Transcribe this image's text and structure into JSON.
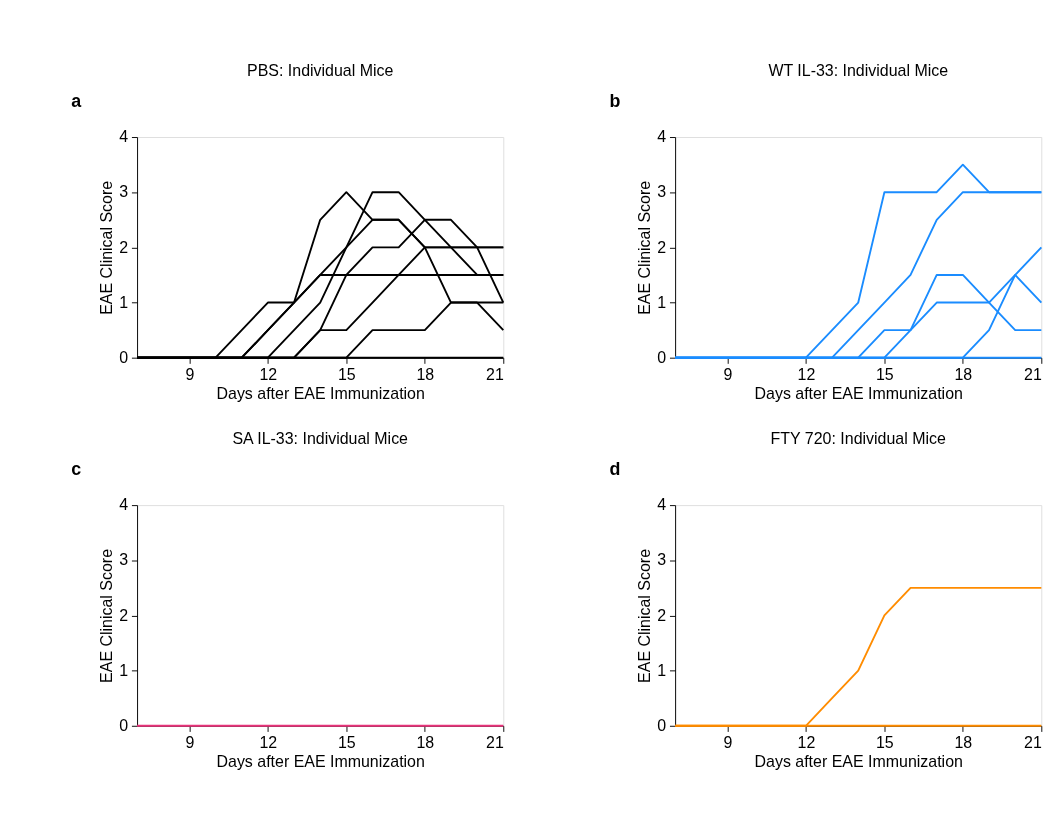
{
  "chart_data": [
    {
      "type": "line",
      "title": "PBS: Individual Mice",
      "xlabel": "Days after EAE Immunization",
      "ylabel": "EAE Clinical Score",
      "annotations": [
        "a"
      ],
      "xlim": [
        7,
        21
      ],
      "xticks": [
        9,
        12,
        15,
        18,
        21
      ],
      "ylim": [
        0,
        4
      ],
      "yticks": [
        0,
        1,
        2,
        3,
        4
      ],
      "grid": false,
      "line_style": "solid",
      "marker": "none",
      "x": [
        7,
        8,
        9,
        10,
        11,
        12,
        13,
        14,
        15,
        16,
        17,
        18,
        19,
        20,
        21
      ],
      "series": [
        {
          "color": "#000000",
          "values": [
            0,
            0,
            0,
            0,
            0.5,
            1,
            1,
            2.5,
            3,
            2.5,
            2.5,
            2,
            1,
            1,
            0.5
          ]
        },
        {
          "color": "#000000",
          "values": [
            0,
            0,
            0,
            0,
            0,
            0.5,
            1,
            1.5,
            2,
            2.5,
            2.5,
            2,
            2,
            2,
            2
          ]
        },
        {
          "color": "#000000",
          "values": [
            0,
            0,
            0,
            0,
            0,
            0,
            0.5,
            1,
            2,
            3,
            3,
            2.5,
            2,
            1.5,
            1.5
          ]
        },
        {
          "color": "#000000",
          "values": [
            0,
            0,
            0,
            0,
            0,
            0,
            0,
            0.5,
            1.5,
            2,
            2,
            2.5,
            2.5,
            2,
            1
          ]
        },
        {
          "color": "#000000",
          "values": [
            0,
            0,
            0,
            0,
            0,
            0,
            0,
            0.5,
            0.5,
            1,
            1.5,
            2,
            2,
            2,
            2
          ]
        },
        {
          "color": "#000000",
          "values": [
            0,
            0,
            0,
            0,
            0,
            0,
            0,
            0,
            0,
            0.5,
            0.5,
            0.5,
            1,
            1,
            1
          ]
        },
        {
          "color": "#000000",
          "values": [
            0,
            0,
            0,
            0,
            0,
            0.5,
            1,
            1.5,
            1.5,
            1.5,
            1.5,
            1.5,
            1.5,
            1.5,
            1.5
          ]
        },
        {
          "color": "#000000",
          "values": [
            0,
            0,
            0,
            0,
            0,
            0,
            0,
            0,
            0,
            0,
            0,
            0,
            0,
            0,
            0
          ]
        }
      ]
    },
    {
      "type": "line",
      "title": "WT IL-33: Individual Mice",
      "xlabel": "Days after EAE Immunization",
      "ylabel": "EAE Clinical Score",
      "annotations": [
        "b"
      ],
      "xlim": [
        7,
        21
      ],
      "xticks": [
        9,
        12,
        15,
        18,
        21
      ],
      "ylim": [
        0,
        4
      ],
      "yticks": [
        0,
        1,
        2,
        3,
        4
      ],
      "grid": false,
      "line_style": "solid",
      "marker": "none",
      "x": [
        7,
        8,
        9,
        10,
        11,
        12,
        13,
        14,
        15,
        16,
        17,
        18,
        19,
        20,
        21
      ],
      "series": [
        {
          "color": "#1a8cff",
          "values": [
            0,
            0,
            0,
            0,
            0,
            0,
            0.5,
            1,
            3,
            3,
            3,
            3.5,
            3,
            3,
            3
          ]
        },
        {
          "color": "#1a8cff",
          "values": [
            0,
            0,
            0,
            0,
            0,
            0,
            0,
            0.5,
            1,
            1.5,
            2.5,
            3,
            3,
            3,
            3
          ]
        },
        {
          "color": "#1a8cff",
          "values": [
            0,
            0,
            0,
            0,
            0,
            0,
            0,
            0,
            0.5,
            0.5,
            1.5,
            1.5,
            1,
            0.5,
            0.5
          ]
        },
        {
          "color": "#1a8cff",
          "values": [
            0,
            0,
            0,
            0,
            0,
            0,
            0,
            0,
            0,
            0.5,
            1,
            1,
            1,
            1.5,
            2
          ]
        },
        {
          "color": "#1a8cff",
          "values": [
            0,
            0,
            0,
            0,
            0,
            0,
            0,
            0,
            0,
            0,
            0,
            0,
            0.5,
            1.5,
            1
          ]
        },
        {
          "color": "#1a8cff",
          "values": [
            0,
            0,
            0,
            0,
            0,
            0,
            0,
            0,
            0,
            0,
            0,
            0,
            0,
            0,
            0
          ]
        }
      ]
    },
    {
      "type": "line",
      "title": "SA IL-33: Individual Mice",
      "xlabel": "Days after EAE Immunization",
      "ylabel": "EAE Clinical Score",
      "annotations": [
        "c"
      ],
      "xlim": [
        7,
        21
      ],
      "xticks": [
        9,
        12,
        15,
        18,
        21
      ],
      "ylim": [
        0,
        4
      ],
      "yticks": [
        0,
        1,
        2,
        3,
        4
      ],
      "grid": false,
      "line_style": "solid",
      "marker": "none",
      "x": [
        7,
        8,
        9,
        10,
        11,
        12,
        13,
        14,
        15,
        16,
        17,
        18,
        19,
        20,
        21
      ],
      "series": [
        {
          "color": "#e8337a",
          "values": [
            0,
            0,
            0,
            0,
            0,
            0,
            0,
            0,
            0,
            0,
            0,
            0,
            0,
            0,
            0
          ]
        }
      ]
    },
    {
      "type": "line",
      "title": "FTY 720: Individual Mice",
      "xlabel": "Days after EAE Immunization",
      "ylabel": "EAE Clinical Score",
      "annotations": [
        "d"
      ],
      "xlim": [
        7,
        21
      ],
      "xticks": [
        9,
        12,
        15,
        18,
        21
      ],
      "ylim": [
        0,
        4
      ],
      "yticks": [
        0,
        1,
        2,
        3,
        4
      ],
      "grid": false,
      "line_style": "solid",
      "marker": "none",
      "x": [
        7,
        8,
        9,
        10,
        11,
        12,
        13,
        14,
        15,
        16,
        17,
        18,
        19,
        20,
        21
      ],
      "series": [
        {
          "color": "#ff8c00",
          "values": [
            0,
            0,
            0,
            0,
            0,
            0,
            0.5,
            1,
            2,
            2.5,
            2.5,
            2.5,
            2.5,
            2.5,
            2.5
          ]
        },
        {
          "color": "#ff8c00",
          "values": [
            0,
            0,
            0,
            0,
            0,
            0,
            0,
            0,
            0,
            0,
            0,
            0,
            0,
            0,
            0
          ]
        }
      ]
    }
  ]
}
